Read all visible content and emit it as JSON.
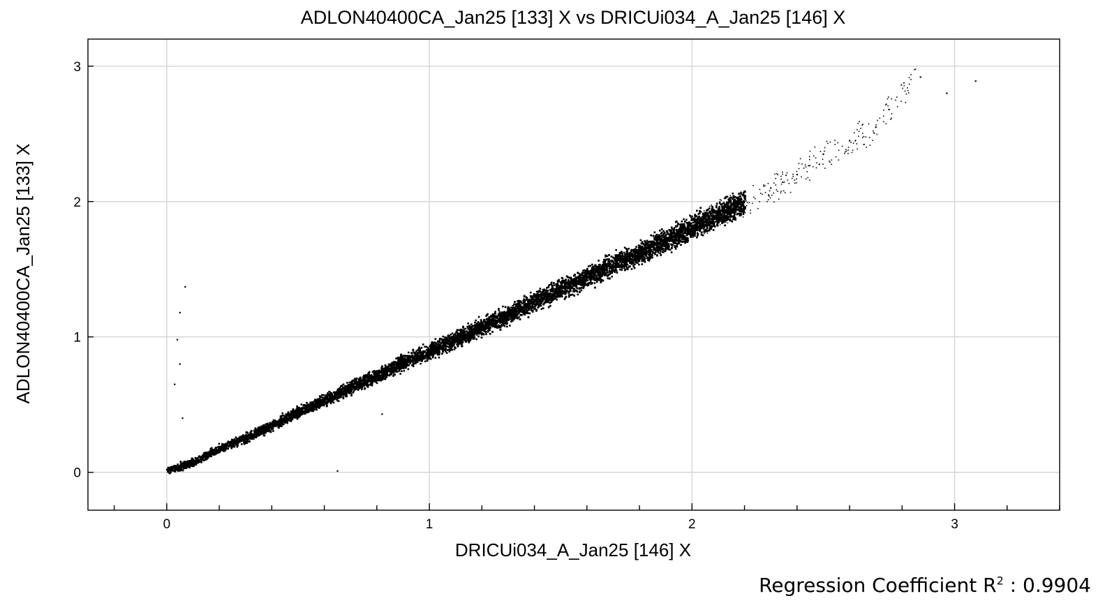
{
  "chart_data": {
    "type": "scatter",
    "title": "ADLON40400CA_Jan25 [133] X vs DRICUi034_A_Jan25 [146] X",
    "xlabel": "DRICUi034_A_Jan25 [146] X",
    "ylabel": "ADLON40400CA_Jan25 [133] X",
    "xlim": [
      -0.3,
      3.4
    ],
    "ylim": [
      -0.28,
      3.2
    ],
    "x_ticks": [
      0,
      1,
      2,
      3
    ],
    "y_ticks": [
      0,
      1,
      2,
      3
    ],
    "x_minor_step": 0.2,
    "grid": true,
    "point_color": "#000000",
    "series": [
      {
        "points": [
          [
            0.0,
            0.02
          ],
          [
            0.05,
            0.05
          ],
          [
            0.1,
            0.08
          ],
          [
            0.2,
            0.18
          ],
          [
            0.3,
            0.26
          ],
          [
            0.4,
            0.35
          ],
          [
            0.5,
            0.45
          ],
          [
            0.6,
            0.54
          ],
          [
            0.7,
            0.63
          ],
          [
            0.8,
            0.72
          ],
          [
            0.9,
            0.82
          ],
          [
            1.0,
            0.9
          ],
          [
            1.1,
            0.99
          ],
          [
            1.2,
            1.08
          ],
          [
            1.3,
            1.17
          ],
          [
            1.4,
            1.27
          ],
          [
            1.5,
            1.36
          ],
          [
            1.6,
            1.45
          ],
          [
            1.7,
            1.54
          ],
          [
            1.8,
            1.63
          ],
          [
            1.9,
            1.72
          ],
          [
            2.0,
            1.82
          ],
          [
            2.1,
            1.91
          ],
          [
            2.2,
            2.0
          ],
          [
            2.3,
            2.1
          ],
          [
            2.4,
            2.2
          ],
          [
            2.5,
            2.35
          ],
          [
            2.6,
            2.45
          ],
          [
            2.7,
            2.55
          ],
          [
            2.75,
            2.68
          ],
          [
            2.87,
            2.92
          ],
          [
            2.97,
            2.8
          ],
          [
            3.08,
            2.89
          ],
          [
            0.04,
            0.98
          ],
          [
            0.05,
            0.8
          ],
          [
            0.03,
            0.65
          ],
          [
            0.05,
            1.18
          ],
          [
            0.07,
            1.37
          ],
          [
            0.06,
            0.4
          ],
          [
            0.65,
            0.01
          ],
          [
            0.82,
            0.43
          ]
        ]
      }
    ]
  },
  "regression": {
    "label": "Regression Coefficient R",
    "superscript": "2",
    "separator": " : ",
    "value": "0.9904"
  }
}
